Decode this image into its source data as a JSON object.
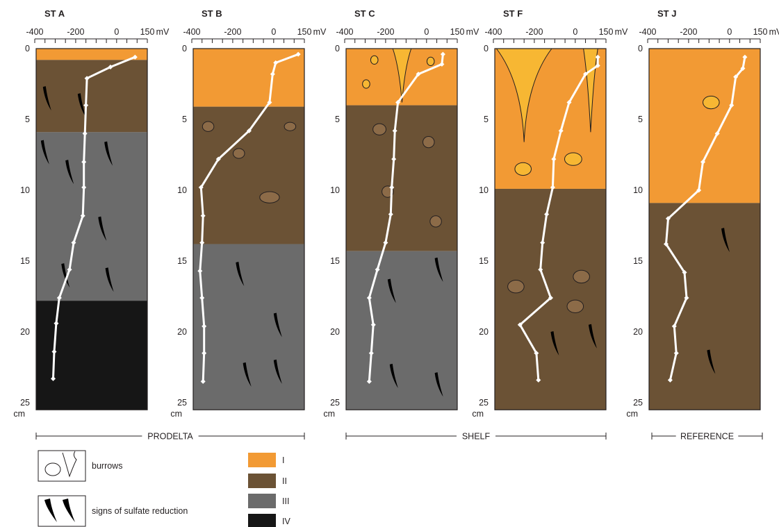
{
  "zone_colors": {
    "I": "#f29a34",
    "II": "#6b5235",
    "III": "#6b6b6b",
    "IV": "#161616"
  },
  "burrow_fill": "#f7b733",
  "profile_color": "#ffffff",
  "axis": {
    "x_ticks": [
      "-400",
      "-200",
      "0",
      "150"
    ],
    "x_unit": "mV",
    "x_range_mV": [
      -400,
      150
    ],
    "depth_ticks": [
      "0",
      "5",
      "10",
      "15",
      "20",
      "25"
    ],
    "depth_unit": "cm",
    "depth_range_cm": [
      0,
      25
    ]
  },
  "stations": [
    {
      "name": "ST A",
      "zones": [
        {
          "zone": "I",
          "from_cm": 0,
          "to_cm": 0.8
        },
        {
          "zone": "II",
          "from_cm": 0.8,
          "to_cm": 5.9
        },
        {
          "zone": "III",
          "from_cm": 5.9,
          "to_cm": 17.8
        },
        {
          "zone": "IV",
          "from_cm": 17.8,
          "to_cm": 25.5
        }
      ],
      "redox_profile": [
        [
          90,
          0.6
        ],
        [
          -30,
          1.3
        ],
        [
          -145,
          2.1
        ],
        [
          -150,
          4
        ],
        [
          -155,
          6
        ],
        [
          -160,
          8
        ],
        [
          -160,
          9.8
        ],
        [
          -165,
          11.8
        ],
        [
          -210,
          13.7
        ],
        [
          -230,
          15.6
        ],
        [
          -280,
          17.6
        ],
        [
          -295,
          19.4
        ],
        [
          -305,
          21.4
        ],
        [
          -310,
          23.3
        ]
      ],
      "burrows": [],
      "sulfide_marks": [
        [
          -360,
          2.7
        ],
        [
          -190,
          3.2
        ],
        [
          -370,
          6.5
        ],
        [
          -60,
          6.6
        ],
        [
          -250,
          7.9
        ],
        [
          -90,
          11.9
        ],
        [
          -270,
          15.2
        ],
        [
          -55,
          15.5
        ]
      ]
    },
    {
      "name": "ST B",
      "zones": [
        {
          "zone": "I",
          "from_cm": 0,
          "to_cm": 4.1
        },
        {
          "zone": "II",
          "from_cm": 4.1,
          "to_cm": 13.8
        },
        {
          "zone": "III",
          "from_cm": 13.8,
          "to_cm": 25.5
        }
      ],
      "redox_profile": [
        [
          120,
          0.4
        ],
        [
          10,
          1
        ],
        [
          -5,
          1.8
        ],
        [
          -20,
          3.8
        ],
        [
          -120,
          5.8
        ],
        [
          -270,
          7.8
        ],
        [
          -355,
          9.8
        ],
        [
          -345,
          11.8
        ],
        [
          -350,
          13.7
        ],
        [
          -360,
          15.7
        ],
        [
          -350,
          17.6
        ],
        [
          -340,
          19.6
        ],
        [
          -340,
          21.5
        ],
        [
          -345,
          23.5
        ]
      ],
      "burrows": [
        {
          "type": "oval",
          "x": -320,
          "y": 5.5,
          "rx": 28,
          "ry": 0.35
        },
        {
          "type": "oval",
          "x": 80,
          "y": 5.5,
          "rx": 28,
          "ry": 0.3
        },
        {
          "type": "oval",
          "x": -170,
          "y": 7.4,
          "rx": 28,
          "ry": 0.35
        },
        {
          "type": "oval",
          "x": -20,
          "y": 10.5,
          "rx": 48,
          "ry": 0.4
        }
      ],
      "sulfide_marks": [
        [
          -185,
          15.1
        ],
        [
          0,
          18.7
        ],
        [
          -150,
          22.2
        ],
        [
          0,
          22
        ]
      ]
    },
    {
      "name": "ST C",
      "zones": [
        {
          "zone": "I",
          "from_cm": 0,
          "to_cm": 4
        },
        {
          "zone": "II",
          "from_cm": 4,
          "to_cm": 14.3
        },
        {
          "zone": "III",
          "from_cm": 14.3,
          "to_cm": 25.5
        }
      ],
      "redox_profile": [
        [
          80,
          0.4
        ],
        [
          75,
          1.1
        ],
        [
          -40,
          1.8
        ],
        [
          -140,
          3.8
        ],
        [
          -155,
          5.8
        ],
        [
          -160,
          7.8
        ],
        [
          -170,
          9.8
        ],
        [
          -175,
          11.7
        ],
        [
          -200,
          13.7
        ],
        [
          -240,
          15.6
        ],
        [
          -280,
          17.6
        ],
        [
          -260,
          19.5
        ],
        [
          -270,
          21.5
        ],
        [
          -280,
          23.5
        ]
      ],
      "burrows": [
        {
          "type": "circle",
          "x": -255,
          "y": 0.8,
          "rx": 18,
          "ry": 0.3
        },
        {
          "type": "circle",
          "x": 20,
          "y": 0.9,
          "rx": 18,
          "ry": 0.3
        },
        {
          "type": "circle",
          "x": -295,
          "y": 2.5,
          "rx": 18,
          "ry": 0.3
        },
        {
          "type": "oval",
          "x": -230,
          "y": 5.7,
          "rx": 32,
          "ry": 0.4
        },
        {
          "type": "oval",
          "x": 10,
          "y": 6.6,
          "rx": 28,
          "ry": 0.4
        },
        {
          "type": "oval",
          "x": -190,
          "y": 10.1,
          "rx": 28,
          "ry": 0.4
        },
        {
          "type": "oval",
          "x": 45,
          "y": 12.2,
          "rx": 28,
          "ry": 0.4
        }
      ],
      "funnels": [
        {
          "x": -120,
          "top_half_width": 45,
          "depth": 3.8
        }
      ],
      "sulfide_marks": [
        [
          40,
          14.8
        ],
        [
          -190,
          16.3
        ],
        [
          -180,
          22.3
        ],
        [
          40,
          22.9
        ]
      ]
    },
    {
      "name": "ST F",
      "zones": [
        {
          "zone": "I",
          "from_cm": 0,
          "to_cm": 9.9
        },
        {
          "zone": "II",
          "from_cm": 9.9,
          "to_cm": 25.5
        }
      ],
      "redox_profile": [
        [
          110,
          0.6
        ],
        [
          110,
          1.2
        ],
        [
          50,
          1.8
        ],
        [
          -30,
          3.8
        ],
        [
          -70,
          5.8
        ],
        [
          -105,
          7.8
        ],
        [
          -110,
          9.8
        ],
        [
          -140,
          11.7
        ],
        [
          -160,
          13.7
        ],
        [
          -170,
          15.6
        ],
        [
          -120,
          17.6
        ],
        [
          -270,
          19.5
        ],
        [
          -190,
          21.5
        ],
        [
          -180,
          23.4
        ]
      ],
      "burrows": [
        {
          "type": "oval",
          "x": -255,
          "y": 8.5,
          "rx": 40,
          "ry": 0.45
        },
        {
          "type": "oval",
          "x": -10,
          "y": 7.8,
          "rx": 42,
          "ry": 0.45
        },
        {
          "type": "oval",
          "x": -290,
          "y": 16.8,
          "rx": 40,
          "ry": 0.45
        },
        {
          "type": "oval",
          "x": 30,
          "y": 16.1,
          "rx": 40,
          "ry": 0.45
        },
        {
          "type": "oval",
          "x": 0,
          "y": 18.2,
          "rx": 40,
          "ry": 0.45
        }
      ],
      "funnels": [
        {
          "x": -250,
          "top_half_width": 135,
          "depth": 6.6
        },
        {
          "x": 75,
          "top_half_width": 35,
          "depth": 5.9
        }
      ],
      "sulfide_marks": [
        [
          -120,
          20
        ],
        [
          65,
          19.5
        ]
      ]
    },
    {
      "name": "ST J",
      "zones": [
        {
          "zone": "I",
          "from_cm": 0,
          "to_cm": 10.9
        },
        {
          "zone": "II",
          "from_cm": 10.9,
          "to_cm": 25.5
        }
      ],
      "redox_profile": [
        [
          75,
          0.6
        ],
        [
          65,
          1.4
        ],
        [
          30,
          2
        ],
        [
          10,
          4
        ],
        [
          -60,
          6
        ],
        [
          -130,
          8
        ],
        [
          -150,
          10
        ],
        [
          -300,
          12
        ],
        [
          -310,
          13.8
        ],
        [
          -220,
          15.8
        ],
        [
          -210,
          17.6
        ],
        [
          -270,
          19.6
        ],
        [
          -260,
          21.5
        ],
        [
          -290,
          23.4
        ]
      ],
      "burrows": [
        {
          "type": "oval",
          "x": -90,
          "y": 3.8,
          "rx": 40,
          "ry": 0.45
        }
      ],
      "funnels": [],
      "sulfide_marks": [
        [
          -40,
          12.7
        ],
        [
          -110,
          21.3
        ]
      ]
    }
  ],
  "groups": [
    {
      "label": "PRODELTA"
    },
    {
      "label": "SHELF"
    },
    {
      "label": "REFERENCE"
    }
  ],
  "legend": {
    "burrows_label": "burrows",
    "sulfate_label": "signs of sulfate reduction",
    "zones": [
      {
        "zone": "I",
        "label": "I"
      },
      {
        "zone": "II",
        "label": "II"
      },
      {
        "zone": "III",
        "label": "III"
      },
      {
        "zone": "IV",
        "label": "IV"
      }
    ]
  }
}
